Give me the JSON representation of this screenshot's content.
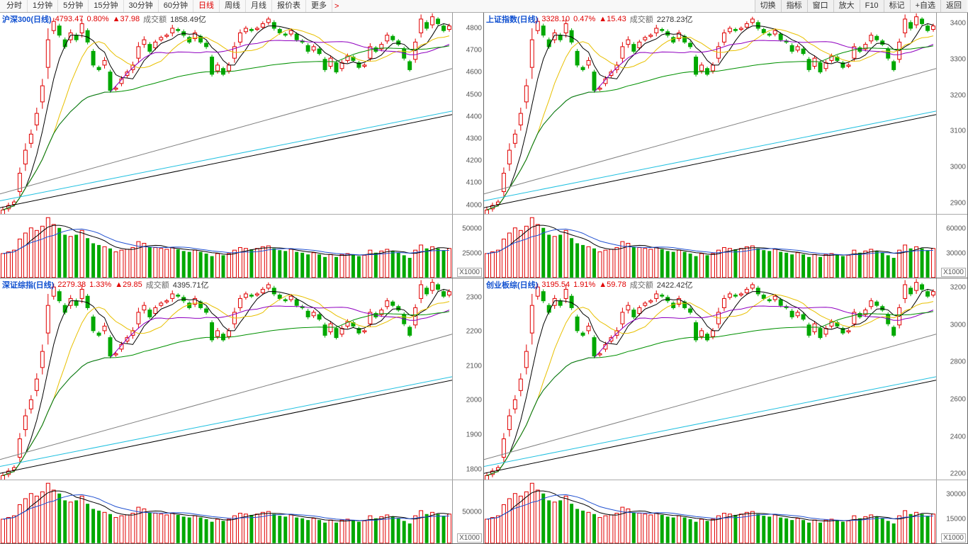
{
  "toolbar": {
    "timeframes": [
      "分时",
      "1分钟",
      "5分钟",
      "15分钟",
      "30分钟",
      "60分钟",
      "日线",
      "周线",
      "月线",
      "报价表",
      "更多"
    ],
    "active_timeframe": "日线",
    "buttons": [
      "切换",
      "指标",
      "窗口",
      "放大",
      "F10",
      "标记",
      "+自选",
      "返回"
    ]
  },
  "colors": {
    "up": "#e00000",
    "dn": "#00a800",
    "bg": "#ffffff",
    "axis": "#999999",
    "ma5": "#000000",
    "ma10": "#e8c000",
    "ma20": "#9000c0",
    "ma60": "#009000",
    "ma120": "#808080",
    "ma250": "#20c0e0"
  },
  "panels": [
    {
      "id": "hs300",
      "name": "沪深300(日线)",
      "price": "4793.47",
      "pct": "0.80%",
      "delta": "▲37.98",
      "amt_label": "成交额",
      "amt": "1858.49亿",
      "yaxis_price": {
        "min": 3960,
        "max": 4870,
        "ticks": [
          4000,
          4100,
          4200,
          4300,
          4400,
          4500,
          4600,
          4700,
          4800
        ]
      },
      "yaxis_vol": {
        "ticks": [
          25000,
          50000
        ]
      },
      "x1000": "X1000"
    },
    {
      "id": "szzs",
      "name": "上证指数(日线)",
      "price": "3328.10",
      "pct": "0.47%",
      "delta": "▲15.43",
      "amt_label": "成交额",
      "amt": "2278.23亿",
      "yaxis_price": {
        "min": 2870,
        "max": 3430,
        "ticks": [
          2900,
          3000,
          3100,
          3200,
          3300,
          3400
        ]
      },
      "yaxis_vol": {
        "ticks": [
          30000,
          60000
        ]
      },
      "x1000": "X1000"
    },
    {
      "id": "szcz",
      "name": "深证综指(日线)",
      "price": "2279.38",
      "pct": "1.33%",
      "delta": "▲29.85",
      "amt_label": "成交额",
      "amt": "4395.71亿",
      "yaxis_price": {
        "min": 1770,
        "max": 2355,
        "ticks": [
          1800,
          1900,
          2000,
          2100,
          2200,
          2300
        ]
      },
      "yaxis_vol": {
        "ticks": [
          50000
        ]
      },
      "x1000": "X1000"
    },
    {
      "id": "cybz",
      "name": "创业板综(日线)",
      "price": "3195.54",
      "pct": "1.91%",
      "delta": "▲59.78",
      "amt_label": "成交额",
      "amt": "2422.42亿",
      "yaxis_price": {
        "min": 2170,
        "max": 3250,
        "ticks": [
          2200,
          2400,
          2600,
          2800,
          3000,
          3200
        ]
      },
      "yaxis_vol": {
        "ticks": [
          15000,
          30000
        ]
      },
      "x1000": "X1000"
    }
  ],
  "series": {
    "n": 80,
    "close": [
      3990,
      4010,
      4025,
      4150,
      4250,
      4320,
      4410,
      4530,
      4730,
      4810,
      4750,
      4700,
      4760,
      4730,
      4800,
      4720,
      4620,
      4600,
      4640,
      4510,
      4520,
      4560,
      4590,
      4620,
      4700,
      4730,
      4680,
      4720,
      4740,
      4750,
      4780,
      4770,
      4750,
      4720,
      4760,
      4720,
      4700,
      4580,
      4620,
      4580,
      4620,
      4700,
      4760,
      4780,
      4770,
      4780,
      4800,
      4820,
      4780,
      4760,
      4750,
      4770,
      4730,
      4720,
      4680,
      4700,
      4670,
      4600,
      4650,
      4590,
      4630,
      4660,
      4640,
      4610,
      4620,
      4700,
      4680,
      4710,
      4750,
      4730,
      4710,
      4650,
      4600,
      4720,
      4820,
      4780,
      4830,
      4800,
      4770,
      4790
    ],
    "open_off": [
      -20,
      -15,
      -10,
      -80,
      -60,
      -40,
      -50,
      -70,
      -120,
      -40,
      40,
      30,
      -30,
      20,
      -40,
      50,
      60,
      10,
      -20,
      80,
      -5,
      -20,
      -15,
      -20,
      -50,
      -20,
      30,
      -25,
      -10,
      -5,
      -20,
      5,
      15,
      20,
      -25,
      25,
      15,
      75,
      -25,
      25,
      -25,
      -50,
      -40,
      -15,
      5,
      -5,
      -15,
      -15,
      25,
      15,
      5,
      -15,
      25,
      5,
      25,
      -15,
      20,
      45,
      -35,
      40,
      -25,
      -20,
      15,
      20,
      -5,
      -50,
      15,
      -20,
      -25,
      15,
      15,
      40,
      35,
      -75,
      -60,
      25,
      -35,
      20,
      20,
      -15
    ],
    "high_off": [
      15,
      12,
      10,
      25,
      30,
      20,
      25,
      30,
      50,
      15,
      10,
      10,
      15,
      10,
      20,
      10,
      10,
      8,
      15,
      10,
      8,
      12,
      10,
      15,
      20,
      15,
      10,
      10,
      8,
      8,
      15,
      8,
      10,
      8,
      12,
      8,
      10,
      10,
      12,
      8,
      12,
      20,
      15,
      10,
      8,
      8,
      10,
      10,
      10,
      8,
      8,
      10,
      8,
      8,
      10,
      10,
      8,
      10,
      12,
      8,
      12,
      10,
      8,
      8,
      8,
      15,
      8,
      10,
      12,
      8,
      8,
      10,
      8,
      15,
      20,
      10,
      15,
      8,
      8,
      10
    ],
    "low_off": [
      15,
      12,
      10,
      25,
      30,
      20,
      25,
      30,
      50,
      15,
      10,
      10,
      15,
      10,
      20,
      10,
      10,
      8,
      15,
      10,
      8,
      12,
      10,
      15,
      20,
      15,
      10,
      10,
      8,
      8,
      15,
      8,
      10,
      8,
      12,
      8,
      10,
      10,
      12,
      8,
      12,
      20,
      15,
      10,
      8,
      8,
      10,
      10,
      10,
      8,
      8,
      10,
      8,
      8,
      10,
      10,
      8,
      10,
      12,
      8,
      12,
      10,
      8,
      8,
      8,
      15,
      8,
      10,
      12,
      8,
      8,
      10,
      8,
      15,
      20,
      10,
      15,
      8,
      8,
      10
    ],
    "vol": [
      28,
      30,
      32,
      45,
      52,
      58,
      55,
      60,
      70,
      62,
      58,
      50,
      48,
      50,
      55,
      46,
      40,
      38,
      36,
      34,
      30,
      32,
      33,
      35,
      42,
      40,
      36,
      35,
      34,
      33,
      35,
      33,
      31,
      30,
      32,
      30,
      28,
      25,
      28,
      26,
      28,
      32,
      35,
      34,
      33,
      34,
      36,
      37,
      34,
      32,
      31,
      33,
      30,
      29,
      27,
      29,
      27,
      24,
      27,
      24,
      27,
      28,
      27,
      25,
      26,
      32,
      29,
      31,
      33,
      31,
      29,
      26,
      23,
      32,
      38,
      34,
      36,
      34,
      32,
      34
    ],
    "ma250_start": 4030,
    "ma250_end": 4420,
    "ma120_start": 4060,
    "ma120_end": 4605
  }
}
